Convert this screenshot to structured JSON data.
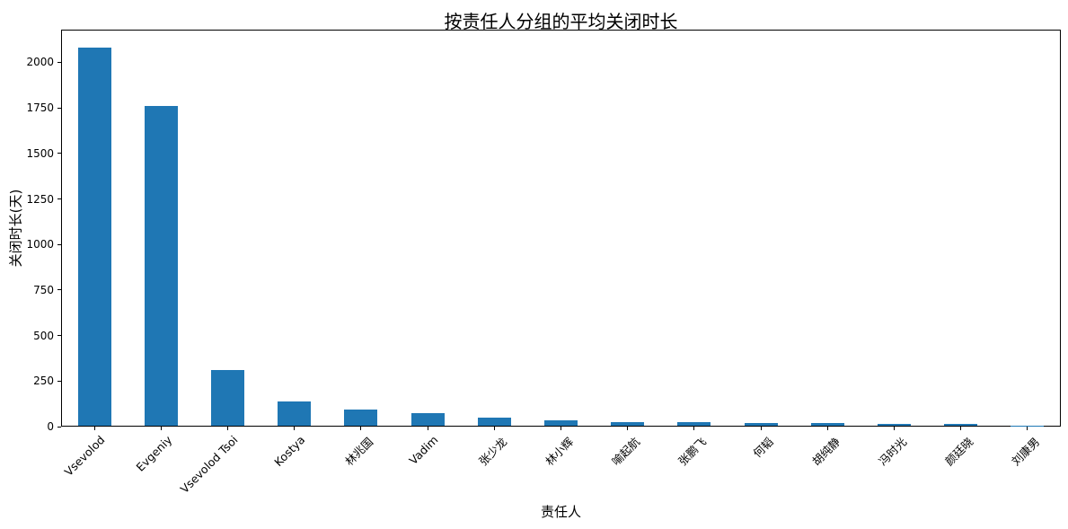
{
  "chart_data": {
    "type": "bar",
    "title": "按责任人分组的平均关闭时长",
    "xlabel": "责任人",
    "ylabel": "关闭时长(天)",
    "categories": [
      "Vsevolod",
      "Evgeniy",
      "Vsevolod Tsoi",
      "Kostya",
      "林兆国",
      "Vadim",
      "张少龙",
      "林小辉",
      "喻起航",
      "张鹏飞",
      "何韬",
      "胡纯静",
      "冯时光",
      "颜廷晓",
      "刘康男"
    ],
    "values": [
      2075,
      1755,
      305,
      135,
      90,
      70,
      45,
      30,
      20,
      20,
      15,
      13,
      11,
      10,
      2
    ],
    "yticks": [
      0,
      250,
      500,
      750,
      1000,
      1250,
      1500,
      1750,
      2000
    ],
    "ylim": [
      0,
      2180
    ],
    "bar_color": "#1f77b4",
    "axis_color": "#000000",
    "background_color": "#ffffff",
    "grid": false,
    "legend": null,
    "x_tick_rotation_deg": 45
  }
}
